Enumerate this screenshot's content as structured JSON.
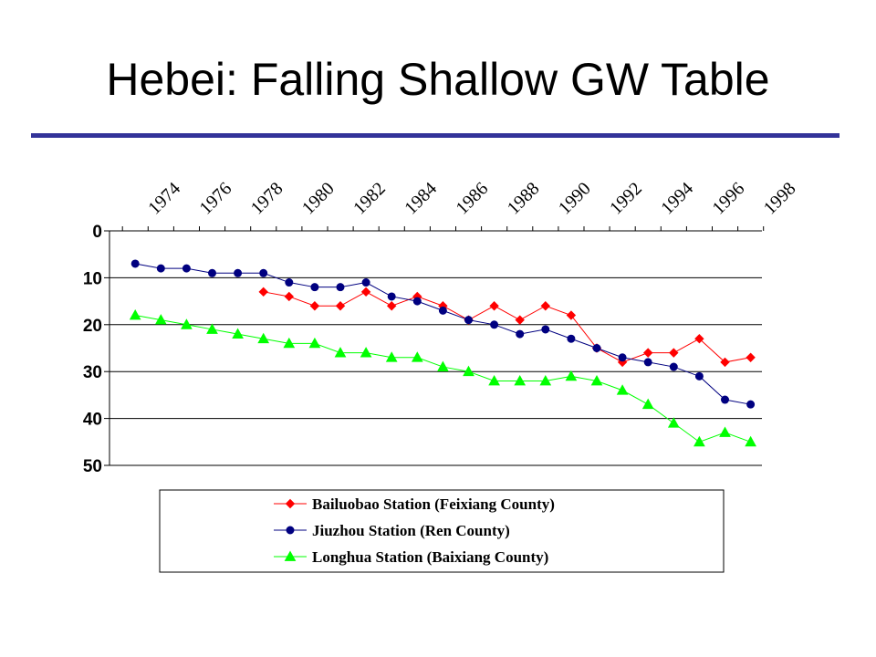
{
  "slide": {
    "title": "Hebei: Falling Shallow GW Table",
    "rule_color": "#333399"
  },
  "chart_data": {
    "type": "line",
    "x_ticks": [
      "1974",
      "1976",
      "1978",
      "1980",
      "1982",
      "1984",
      "1986",
      "1988",
      "1990",
      "1992",
      "1994",
      "1996",
      "1998"
    ],
    "xlim": [
      1973,
      1998
    ],
    "ylim": [
      0,
      50
    ],
    "y_inverted": true,
    "y_ticks": [
      0,
      10,
      20,
      30,
      40,
      50
    ],
    "grid": "horizontal",
    "legend_position": "bottom",
    "series": [
      {
        "name": "Bailuobao Station (Feixiang County)",
        "color": "#ff0000",
        "marker": "diamond",
        "x": [
          1978,
          1979,
          1980,
          1981,
          1982,
          1983,
          1984,
          1985,
          1986,
          1987,
          1988,
          1989,
          1990,
          1991,
          1992,
          1993,
          1994,
          1995,
          1996,
          1997
        ],
        "values": [
          13,
          14,
          16,
          16,
          13,
          16,
          14,
          16,
          19,
          16,
          19,
          16,
          18,
          25,
          28,
          26,
          26,
          23,
          28,
          27
        ]
      },
      {
        "name": "Jiuzhou Station (Ren County)",
        "color": "#000080",
        "marker": "circle",
        "x": [
          1973,
          1974,
          1975,
          1976,
          1977,
          1978,
          1979,
          1980,
          1981,
          1982,
          1983,
          1984,
          1985,
          1986,
          1987,
          1988,
          1989,
          1990,
          1991,
          1992,
          1993,
          1994,
          1995,
          1996,
          1997
        ],
        "values": [
          7,
          8,
          8,
          9,
          9,
          9,
          11,
          12,
          12,
          11,
          14,
          15,
          17,
          19,
          20,
          22,
          21,
          23,
          25,
          27,
          28,
          29,
          31,
          36,
          37
        ]
      },
      {
        "name": "Longhua Station (Baixiang County)",
        "color": "#00ff00",
        "marker": "triangle",
        "x": [
          1973,
          1974,
          1975,
          1976,
          1977,
          1978,
          1979,
          1980,
          1981,
          1982,
          1983,
          1984,
          1985,
          1986,
          1987,
          1988,
          1989,
          1990,
          1991,
          1992,
          1993,
          1994,
          1995,
          1996,
          1997
        ],
        "values": [
          18,
          19,
          20,
          21,
          22,
          23,
          24,
          24,
          26,
          26,
          27,
          27,
          29,
          30,
          32,
          32,
          32,
          31,
          32,
          34,
          37,
          41,
          45,
          43,
          45
        ]
      }
    ]
  }
}
